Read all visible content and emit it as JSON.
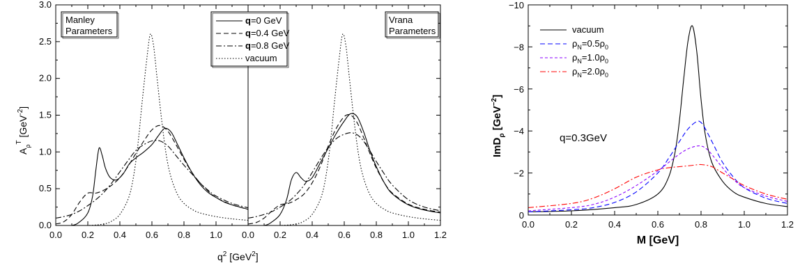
{
  "chart_data": [
    {
      "type": "line",
      "panel_labels": [
        "Manley\nParameters",
        "Vrana\nParameters"
      ],
      "ylabel_main": "A",
      "ylabel_sub": "ρ",
      "ylabel_sup": "T",
      "ylabel_unit": " [GeV",
      "ylabel_unit_sup": "-2",
      "ylabel_close": "]",
      "xlabel_main": "q",
      "xlabel_sup": "2",
      "xlabel_unit": " [GeV",
      "xlabel_unit_sup": "2",
      "xlabel_close": "]",
      "ylim": [
        0,
        3.0
      ],
      "yticks": [
        "0.0",
        "0.5",
        "1.0",
        "1.5",
        "2.0",
        "2.5",
        "3.0"
      ],
      "left_xlim": [
        0,
        1.2
      ],
      "left_xticks": [
        "0.0",
        "0.2",
        "0.4",
        "0.6",
        "0.8",
        "1.0"
      ],
      "right_xlim": [
        0,
        1.2
      ],
      "right_xticks": [
        "0.0",
        "0.2",
        "0.4",
        "0.6",
        "0.8",
        "1.0",
        "1.2"
      ],
      "legend": [
        {
          "bold": "q",
          "text": "=0 GeV",
          "dash": "solid"
        },
        {
          "bold": "q",
          "text": "=0.4 GeV",
          "dash": "dash"
        },
        {
          "bold": "q",
          "text": "=0.8 GeV",
          "dash": "dashdot"
        },
        {
          "bold": "",
          "text": "vacuum",
          "dash": "dot"
        }
      ],
      "left_series": [
        {
          "dash": "solid",
          "x": [
            0.0,
            0.1,
            0.15,
            0.2,
            0.23,
            0.25,
            0.27,
            0.29,
            0.31,
            0.34,
            0.38,
            0.42,
            0.46,
            0.5,
            0.55,
            0.6,
            0.64,
            0.68,
            0.72,
            0.76,
            0.8,
            0.85,
            0.9,
            0.95,
            1.0,
            1.05,
            1.1,
            1.15,
            1.2
          ],
          "y": [
            0.0,
            0.0,
            0.05,
            0.17,
            0.4,
            0.75,
            1.05,
            0.95,
            0.78,
            0.65,
            0.62,
            0.7,
            0.84,
            0.92,
            1.0,
            1.1,
            1.22,
            1.32,
            1.27,
            1.1,
            0.92,
            0.72,
            0.56,
            0.45,
            0.38,
            0.32,
            0.28,
            0.25,
            0.22
          ]
        },
        {
          "dash": "dash",
          "x": [
            0.0,
            0.05,
            0.1,
            0.15,
            0.2,
            0.25,
            0.3,
            0.35,
            0.4,
            0.45,
            0.5,
            0.55,
            0.6,
            0.65,
            0.7,
            0.75,
            0.8,
            0.85,
            0.9,
            0.95,
            1.0,
            1.1,
            1.2
          ],
          "y": [
            0.02,
            0.05,
            0.15,
            0.32,
            0.44,
            0.44,
            0.48,
            0.55,
            0.65,
            0.8,
            0.98,
            1.15,
            1.3,
            1.36,
            1.28,
            1.1,
            0.9,
            0.72,
            0.58,
            0.47,
            0.38,
            0.28,
            0.22
          ]
        },
        {
          "dash": "dashdot",
          "x": [
            0.0,
            0.05,
            0.1,
            0.15,
            0.2,
            0.25,
            0.3,
            0.35,
            0.4,
            0.45,
            0.5,
            0.55,
            0.6,
            0.65,
            0.7,
            0.75,
            0.8,
            0.85,
            0.9,
            0.95,
            1.0,
            1.1,
            1.2
          ],
          "y": [
            0.1,
            0.12,
            0.15,
            0.2,
            0.27,
            0.35,
            0.45,
            0.58,
            0.73,
            0.88,
            1.02,
            1.1,
            1.15,
            1.15,
            1.08,
            0.95,
            0.82,
            0.7,
            0.58,
            0.48,
            0.4,
            0.3,
            0.24
          ]
        },
        {
          "dash": "dot",
          "x": [
            0.0,
            0.2,
            0.3,
            0.35,
            0.4,
            0.45,
            0.48,
            0.51,
            0.54,
            0.57,
            0.59,
            0.61,
            0.63,
            0.66,
            0.69,
            0.72,
            0.76,
            0.8,
            0.85,
            0.9,
            1.0,
            1.1,
            1.2
          ],
          "y": [
            0.0,
            0.0,
            0.02,
            0.06,
            0.15,
            0.35,
            0.6,
            1.05,
            1.7,
            2.3,
            2.6,
            2.45,
            2.05,
            1.45,
            0.95,
            0.65,
            0.42,
            0.3,
            0.22,
            0.17,
            0.12,
            0.09,
            0.07
          ]
        }
      ],
      "right_series": [
        {
          "dash": "solid",
          "x": [
            0.0,
            0.1,
            0.15,
            0.2,
            0.24,
            0.27,
            0.3,
            0.33,
            0.36,
            0.4,
            0.45,
            0.5,
            0.55,
            0.6,
            0.64,
            0.68,
            0.72,
            0.76,
            0.8,
            0.85,
            0.9,
            1.0,
            1.1,
            1.2
          ],
          "y": [
            0.0,
            0.0,
            0.05,
            0.15,
            0.35,
            0.62,
            0.72,
            0.65,
            0.6,
            0.65,
            0.85,
            1.05,
            1.25,
            1.42,
            1.52,
            1.48,
            1.28,
            1.02,
            0.8,
            0.58,
            0.43,
            0.28,
            0.21,
            0.17
          ]
        },
        {
          "dash": "dash",
          "x": [
            0.0,
            0.05,
            0.1,
            0.15,
            0.2,
            0.25,
            0.3,
            0.35,
            0.4,
            0.45,
            0.5,
            0.55,
            0.6,
            0.64,
            0.68,
            0.72,
            0.76,
            0.8,
            0.85,
            0.9,
            1.0,
            1.1,
            1.2
          ],
          "y": [
            0.02,
            0.04,
            0.1,
            0.2,
            0.28,
            0.3,
            0.35,
            0.43,
            0.58,
            0.8,
            1.08,
            1.32,
            1.48,
            1.5,
            1.4,
            1.2,
            0.98,
            0.78,
            0.58,
            0.44,
            0.29,
            0.22,
            0.18
          ]
        },
        {
          "dash": "dashdot",
          "x": [
            0.0,
            0.05,
            0.1,
            0.15,
            0.2,
            0.25,
            0.3,
            0.35,
            0.4,
            0.45,
            0.5,
            0.55,
            0.6,
            0.65,
            0.7,
            0.75,
            0.8,
            0.85,
            0.9,
            1.0,
            1.1,
            1.2
          ],
          "y": [
            0.1,
            0.12,
            0.15,
            0.19,
            0.25,
            0.32,
            0.42,
            0.55,
            0.72,
            0.9,
            1.06,
            1.18,
            1.24,
            1.26,
            1.2,
            1.05,
            0.87,
            0.7,
            0.55,
            0.35,
            0.25,
            0.2
          ]
        },
        {
          "dash": "dot",
          "x": [
            0.0,
            0.2,
            0.3,
            0.35,
            0.4,
            0.45,
            0.48,
            0.51,
            0.54,
            0.57,
            0.59,
            0.61,
            0.63,
            0.66,
            0.69,
            0.72,
            0.76,
            0.8,
            0.85,
            0.9,
            1.0,
            1.1,
            1.2
          ],
          "y": [
            0.0,
            0.0,
            0.02,
            0.06,
            0.15,
            0.35,
            0.6,
            1.05,
            1.7,
            2.3,
            2.6,
            2.45,
            2.05,
            1.45,
            0.95,
            0.65,
            0.42,
            0.3,
            0.22,
            0.17,
            0.12,
            0.09,
            0.07
          ]
        }
      ]
    },
    {
      "type": "line",
      "xlabel": "M [GeV]",
      "ylabel_main": "ImD",
      "ylabel_sub": "ρ",
      "ylabel_unit": " [GeV",
      "ylabel_unit_sup": "−2",
      "ylabel_close": "]",
      "xlim": [
        0,
        1.2
      ],
      "ylim": [
        0,
        -10
      ],
      "xticks": [
        "0.0",
        "0.2",
        "0.4",
        "0.6",
        "0.8",
        "1.0",
        "1.2"
      ],
      "yticks": [
        "0",
        "−2",
        "−4",
        "−6",
        "−8",
        "−10"
      ],
      "annotation": "q=0.3GeV",
      "legend": [
        {
          "label": "vacuum",
          "color": "#000000",
          "dash": "solid"
        },
        {
          "label_main": "ρ",
          "label_sub": "N",
          "label_rest": "=0.5ρ",
          "label_sub2": "0",
          "color": "#0000ff",
          "dash": "dash"
        },
        {
          "label_main": "ρ",
          "label_sub": "N",
          "label_rest": "=1.0ρ",
          "label_sub2": "0",
          "color": "#8b00ff",
          "dash": "shortdash"
        },
        {
          "label_main": "ρ",
          "label_sub": "N",
          "label_rest": "=2.0ρ",
          "label_sub2": "0",
          "color": "#ff0000",
          "dash": "dashdot"
        }
      ],
      "series": [
        {
          "color": "#000000",
          "dash": "solid",
          "x": [
            0.0,
            0.2,
            0.4,
            0.5,
            0.6,
            0.65,
            0.68,
            0.7,
            0.72,
            0.74,
            0.76,
            0.78,
            0.8,
            0.82,
            0.85,
            0.9,
            0.95,
            1.0,
            1.1,
            1.2
          ],
          "y": [
            -0.15,
            -0.2,
            -0.35,
            -0.5,
            -1.0,
            -1.8,
            -3.0,
            -4.5,
            -6.5,
            -8.3,
            -9.0,
            -7.8,
            -5.5,
            -3.8,
            -2.5,
            -1.6,
            -1.1,
            -0.85,
            -0.55,
            -0.4
          ]
        },
        {
          "color": "#0000ff",
          "dash": "dash",
          "x": [
            0.0,
            0.2,
            0.3,
            0.4,
            0.5,
            0.6,
            0.65,
            0.7,
            0.74,
            0.78,
            0.8,
            0.82,
            0.86,
            0.9,
            0.95,
            1.0,
            1.1,
            1.2
          ],
          "y": [
            -0.15,
            -0.25,
            -0.35,
            -0.6,
            -1.1,
            -2.0,
            -2.7,
            -3.5,
            -4.1,
            -4.45,
            -4.4,
            -4.1,
            -3.3,
            -2.5,
            -1.8,
            -1.3,
            -0.8,
            -0.55
          ]
        },
        {
          "color": "#8b00ff",
          "dash": "shortdash",
          "x": [
            0.0,
            0.2,
            0.3,
            0.4,
            0.5,
            0.6,
            0.65,
            0.7,
            0.74,
            0.78,
            0.81,
            0.84,
            0.88,
            0.92,
            0.96,
            1.0,
            1.1,
            1.2
          ],
          "y": [
            -0.2,
            -0.35,
            -0.5,
            -0.85,
            -1.4,
            -2.1,
            -2.5,
            -2.9,
            -3.15,
            -3.28,
            -3.25,
            -3.0,
            -2.5,
            -2.0,
            -1.6,
            -1.3,
            -0.9,
            -0.65
          ]
        },
        {
          "color": "#ff0000",
          "dash": "dashdot",
          "x": [
            0.0,
            0.2,
            0.3,
            0.4,
            0.5,
            0.6,
            0.65,
            0.7,
            0.75,
            0.8,
            0.85,
            0.9,
            0.95,
            1.0,
            1.1,
            1.2
          ],
          "y": [
            -0.35,
            -0.55,
            -0.8,
            -1.25,
            -1.8,
            -2.15,
            -2.25,
            -2.3,
            -2.35,
            -2.4,
            -2.3,
            -2.0,
            -1.7,
            -1.4,
            -1.0,
            -0.75
          ]
        }
      ]
    }
  ]
}
